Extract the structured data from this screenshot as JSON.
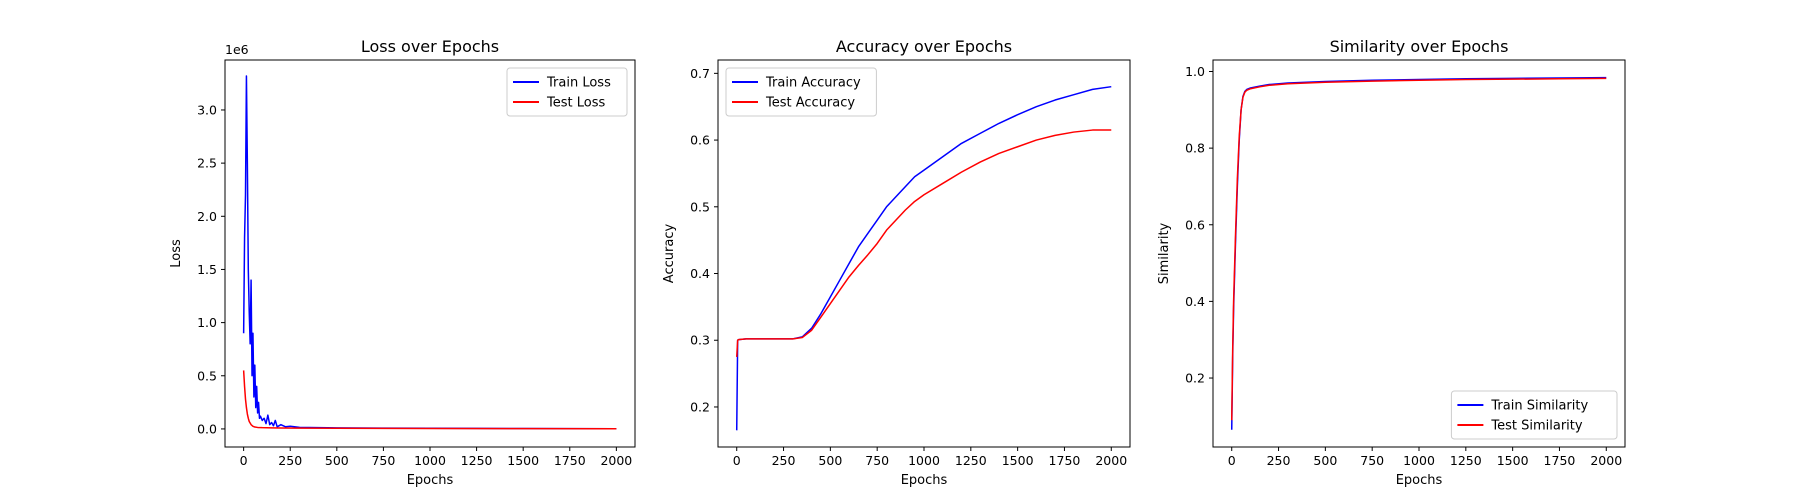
{
  "colors": {
    "train": "#0000ff",
    "test": "#ff0000"
  },
  "chart_data": [
    {
      "type": "line",
      "title": "Loss over Epochs",
      "xlabel": "Epochs",
      "ylabel": "Loss",
      "y_offset_label": "1e6",
      "xlim": [
        -100,
        2100
      ],
      "ylim": [
        -0.17,
        3.47
      ],
      "x_ticks": [
        0,
        250,
        500,
        750,
        1000,
        1250,
        1500,
        1750,
        2000
      ],
      "y_ticks": [
        0.0,
        0.5,
        1.0,
        1.5,
        2.0,
        2.5,
        3.0
      ],
      "y_tick_labels": [
        "0.0",
        "0.5",
        "1.0",
        "1.5",
        "2.0",
        "2.5",
        "3.0"
      ],
      "legend_position": "upper right",
      "series": [
        {
          "name": "Train Loss",
          "color": "#0000ff",
          "x": [
            0,
            5,
            10,
            15,
            20,
            25,
            30,
            35,
            40,
            45,
            50,
            55,
            60,
            65,
            70,
            75,
            80,
            85,
            90,
            100,
            110,
            120,
            130,
            140,
            150,
            160,
            170,
            180,
            200,
            225,
            250,
            300,
            400,
            500,
            750,
            1000,
            1250,
            1500,
            1750,
            2000
          ],
          "values": [
            0.9,
            1.8,
            2.2,
            3.32,
            2.5,
            1.5,
            1.1,
            0.8,
            1.4,
            0.5,
            0.9,
            0.3,
            0.6,
            0.2,
            0.4,
            0.15,
            0.25,
            0.1,
            0.12,
            0.08,
            0.1,
            0.05,
            0.13,
            0.04,
            0.06,
            0.03,
            0.08,
            0.02,
            0.04,
            0.02,
            0.025,
            0.015,
            0.012,
            0.01,
            0.008,
            0.006,
            0.005,
            0.004,
            0.003,
            0.002
          ]
        },
        {
          "name": "Test Loss",
          "color": "#ff0000",
          "x": [
            0,
            5,
            10,
            15,
            20,
            25,
            30,
            40,
            50,
            60,
            75,
            100,
            150,
            200,
            300,
            500,
            1000,
            1500,
            2000
          ],
          "values": [
            0.55,
            0.4,
            0.28,
            0.2,
            0.14,
            0.1,
            0.07,
            0.04,
            0.025,
            0.018,
            0.014,
            0.012,
            0.01,
            0.009,
            0.008,
            0.006,
            0.004,
            0.003,
            0.002
          ]
        }
      ]
    },
    {
      "type": "line",
      "title": "Accuracy over Epochs",
      "xlabel": "Epochs",
      "ylabel": "Accuracy",
      "xlim": [
        -100,
        2100
      ],
      "ylim": [
        0.14,
        0.72
      ],
      "x_ticks": [
        0,
        250,
        500,
        750,
        1000,
        1250,
        1500,
        1750,
        2000
      ],
      "y_ticks": [
        0.2,
        0.3,
        0.4,
        0.5,
        0.6,
        0.7
      ],
      "y_tick_labels": [
        "0.2",
        "0.3",
        "0.4",
        "0.5",
        "0.6",
        "0.7"
      ],
      "legend_position": "upper left",
      "series": [
        {
          "name": "Train Accuracy",
          "color": "#0000ff",
          "x": [
            0,
            5,
            10,
            50,
            100,
            200,
            300,
            350,
            400,
            450,
            500,
            550,
            600,
            650,
            700,
            750,
            800,
            850,
            900,
            950,
            1000,
            1100,
            1200,
            1300,
            1400,
            1500,
            1600,
            1700,
            1800,
            1900,
            2000
          ],
          "values": [
            0.165,
            0.3,
            0.301,
            0.302,
            0.302,
            0.302,
            0.302,
            0.305,
            0.318,
            0.34,
            0.365,
            0.39,
            0.415,
            0.44,
            0.46,
            0.48,
            0.5,
            0.515,
            0.53,
            0.545,
            0.555,
            0.575,
            0.595,
            0.61,
            0.625,
            0.638,
            0.65,
            0.66,
            0.668,
            0.676,
            0.68
          ]
        },
        {
          "name": "Test Accuracy",
          "color": "#ff0000",
          "x": [
            0,
            5,
            10,
            50,
            100,
            200,
            300,
            350,
            400,
            450,
            500,
            550,
            600,
            650,
            700,
            750,
            800,
            850,
            900,
            950,
            1000,
            1100,
            1200,
            1300,
            1400,
            1500,
            1600,
            1700,
            1800,
            1900,
            2000
          ],
          "values": [
            0.275,
            0.3,
            0.301,
            0.302,
            0.302,
            0.302,
            0.302,
            0.304,
            0.315,
            0.335,
            0.355,
            0.375,
            0.395,
            0.412,
            0.428,
            0.445,
            0.465,
            0.48,
            0.495,
            0.508,
            0.518,
            0.535,
            0.552,
            0.567,
            0.58,
            0.59,
            0.6,
            0.607,
            0.612,
            0.615,
            0.615
          ]
        }
      ]
    },
    {
      "type": "line",
      "title": "Similarity over Epochs",
      "xlabel": "Epochs",
      "ylabel": "Similarity",
      "xlim": [
        -100,
        2100
      ],
      "ylim": [
        0.02,
        1.03
      ],
      "x_ticks": [
        0,
        250,
        500,
        750,
        1000,
        1250,
        1500,
        1750,
        2000
      ],
      "y_ticks": [
        0.2,
        0.4,
        0.6,
        0.8,
        1.0
      ],
      "y_tick_labels": [
        "0.2",
        "0.4",
        "0.6",
        "0.8",
        "1.0"
      ],
      "legend_position": "lower right",
      "series": [
        {
          "name": "Train Similarity",
          "color": "#0000ff",
          "x": [
            0,
            5,
            10,
            20,
            30,
            40,
            50,
            60,
            70,
            80,
            100,
            150,
            200,
            300,
            500,
            750,
            1000,
            1250,
            1500,
            1750,
            2000
          ],
          "values": [
            0.065,
            0.25,
            0.38,
            0.55,
            0.7,
            0.82,
            0.9,
            0.935,
            0.948,
            0.953,
            0.957,
            0.962,
            0.966,
            0.97,
            0.974,
            0.977,
            0.979,
            0.981,
            0.982,
            0.983,
            0.984
          ]
        },
        {
          "name": "Test Similarity",
          "color": "#ff0000",
          "x": [
            0,
            5,
            10,
            20,
            30,
            40,
            50,
            60,
            70,
            80,
            100,
            150,
            200,
            300,
            500,
            750,
            1000,
            1250,
            1500,
            1750,
            2000
          ],
          "values": [
            0.09,
            0.27,
            0.4,
            0.57,
            0.72,
            0.83,
            0.9,
            0.933,
            0.946,
            0.951,
            0.955,
            0.96,
            0.964,
            0.968,
            0.972,
            0.975,
            0.977,
            0.979,
            0.98,
            0.981,
            0.982
          ]
        }
      ]
    }
  ]
}
